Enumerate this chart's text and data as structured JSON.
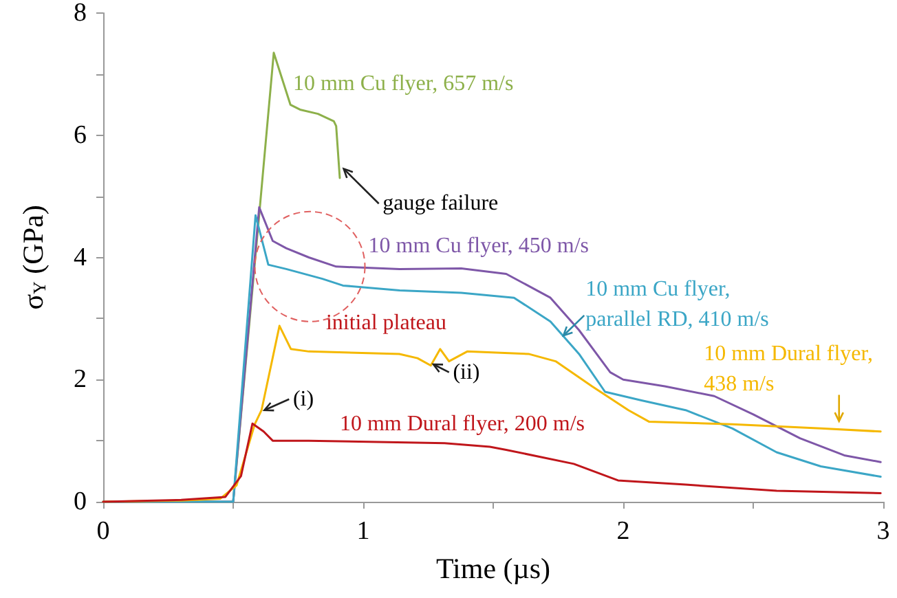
{
  "chart_data": {
    "type": "line",
    "xlabel": "Time (µs)",
    "ylabel": "σ$_{Y}$ (GPa)",
    "xlim": [
      0,
      3
    ],
    "ylim": [
      0,
      8
    ],
    "xticks": [
      0,
      {
        "value": 0.5,
        "label": null
      },
      1,
      {
        "value": 1.5,
        "label": null
      },
      2,
      {
        "value": 2.5,
        "label": null
      },
      3
    ],
    "yticks": [
      0,
      {
        "value": 1,
        "label": null
      },
      2,
      {
        "value": 3,
        "label": null
      },
      4,
      {
        "value": 5,
        "label": null
      },
      6,
      {
        "value": 7,
        "label": null
      },
      8
    ],
    "grid": false,
    "legend": false,
    "marker": "none",
    "line_style": "solid",
    "series": [
      {
        "name": "10 mm Cu flyer, 657 m/s",
        "color": "#8db04a",
        "x": [
          0,
          0.3,
          0.5,
          0.6,
          0.656,
          0.72,
          0.757,
          0.826,
          0.887,
          0.896,
          0.91
        ],
        "values": [
          0,
          0,
          0,
          4.7,
          7.35,
          6.5,
          6.42,
          6.35,
          6.23,
          6.15,
          5.3
        ]
      },
      {
        "name": "10 mm Cu flyer, 450 m/s",
        "color": "#7e57a8",
        "x": [
          0,
          0.3,
          0.5,
          0.6,
          0.652,
          0.704,
          0.791,
          0.896,
          1.14,
          1.377,
          1.55,
          1.72,
          1.83,
          1.95,
          2.0,
          2.16,
          2.35,
          2.5,
          2.68,
          2.85,
          2.99
        ],
        "values": [
          0,
          0,
          0,
          4.82,
          4.27,
          4.15,
          4.0,
          3.85,
          3.81,
          3.82,
          3.73,
          3.34,
          2.81,
          2.12,
          2.0,
          1.89,
          1.73,
          1.43,
          1.04,
          0.76,
          0.65
        ]
      },
      {
        "name": "10 mm Cu flyer,\nparallel RD, 410 m/s",
        "color": "#3ba6c6",
        "x": [
          0,
          0.3,
          0.5,
          0.586,
          0.635,
          0.704,
          0.843,
          0.922,
          1.14,
          1.377,
          1.58,
          1.72,
          1.83,
          1.93,
          2.07,
          2.24,
          2.42,
          2.59,
          2.76,
          2.99
        ],
        "values": [
          0,
          0,
          0,
          4.69,
          3.88,
          3.81,
          3.65,
          3.54,
          3.46,
          3.42,
          3.34,
          2.95,
          2.42,
          1.8,
          1.66,
          1.5,
          1.2,
          0.81,
          0.58,
          0.41
        ]
      },
      {
        "name": "10 mm Dural flyer,\n438 m/s",
        "color": "#f5b800",
        "x": [
          0,
          0.3,
          0.45,
          0.513,
          0.583,
          0.609,
          0.678,
          0.722,
          0.791,
          1.139,
          1.209,
          1.26,
          1.296,
          1.33,
          1.4,
          1.636,
          1.74,
          1.88,
          2.02,
          2.1,
          2.42,
          2.76,
          2.99
        ],
        "values": [
          0,
          0.02,
          0.05,
          0.27,
          1.27,
          1.5,
          2.88,
          2.5,
          2.46,
          2.42,
          2.35,
          2.23,
          2.5,
          2.3,
          2.46,
          2.42,
          2.3,
          1.89,
          1.5,
          1.31,
          1.27,
          1.2,
          1.15
        ]
      },
      {
        "name": "10 mm Dural flyer, 200 m/s",
        "color": "#c0161b",
        "x": [
          0,
          0.3,
          0.47,
          0.53,
          0.574,
          0.617,
          0.652,
          0.791,
          1.313,
          1.487,
          1.55,
          1.81,
          1.98,
          2.24,
          2.59,
          2.99
        ],
        "values": [
          0,
          0.03,
          0.08,
          0.42,
          1.28,
          1.15,
          1.0,
          1.0,
          0.96,
          0.9,
          0.85,
          0.62,
          0.35,
          0.28,
          0.18,
          0.14
        ]
      }
    ],
    "annotations": [
      "gauge failure",
      "initial plateau",
      "(i)",
      "(ii)"
    ]
  }
}
